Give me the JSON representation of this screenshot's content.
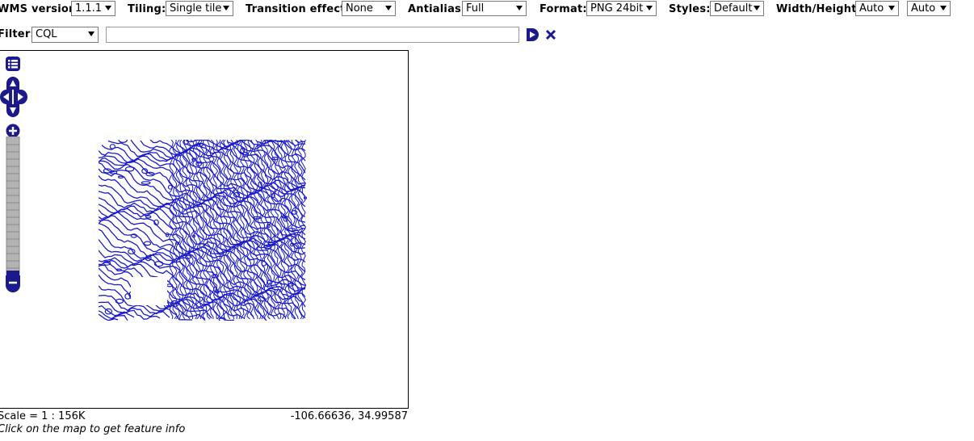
{
  "toolbar": {
    "wms_version": {
      "label": "WMS version:",
      "value": "1.1.1"
    },
    "tiling": {
      "label": "Tiling:",
      "value": "Single tile"
    },
    "transition": {
      "label": "Transition effect:",
      "value": "None"
    },
    "antialias": {
      "label": "Antialias:",
      "value": "Full"
    },
    "format": {
      "label": "Format:",
      "value": "PNG 24bit"
    },
    "styles": {
      "label": "Styles:",
      "value": "Default"
    },
    "size": {
      "label": "Width/Height:",
      "width_value": "Auto",
      "height_value": "Auto"
    }
  },
  "filter": {
    "label": "Filter:",
    "type_value": "CQL",
    "text_value": ""
  },
  "status": {
    "scale": "Scale = 1 : 156K",
    "coordinates": "-106.66636, 34.99587",
    "hint": "Click on the map to get feature info"
  },
  "colors": {
    "accent": "#1a1a8c",
    "contours": "#1a1acc"
  },
  "icons": {
    "apply": "play-icon",
    "reset": "close-icon",
    "layers": "layer-list-icon",
    "pan": "pan-icon",
    "zoom_in": "plus-icon",
    "zoom_out": "minus-icon"
  }
}
